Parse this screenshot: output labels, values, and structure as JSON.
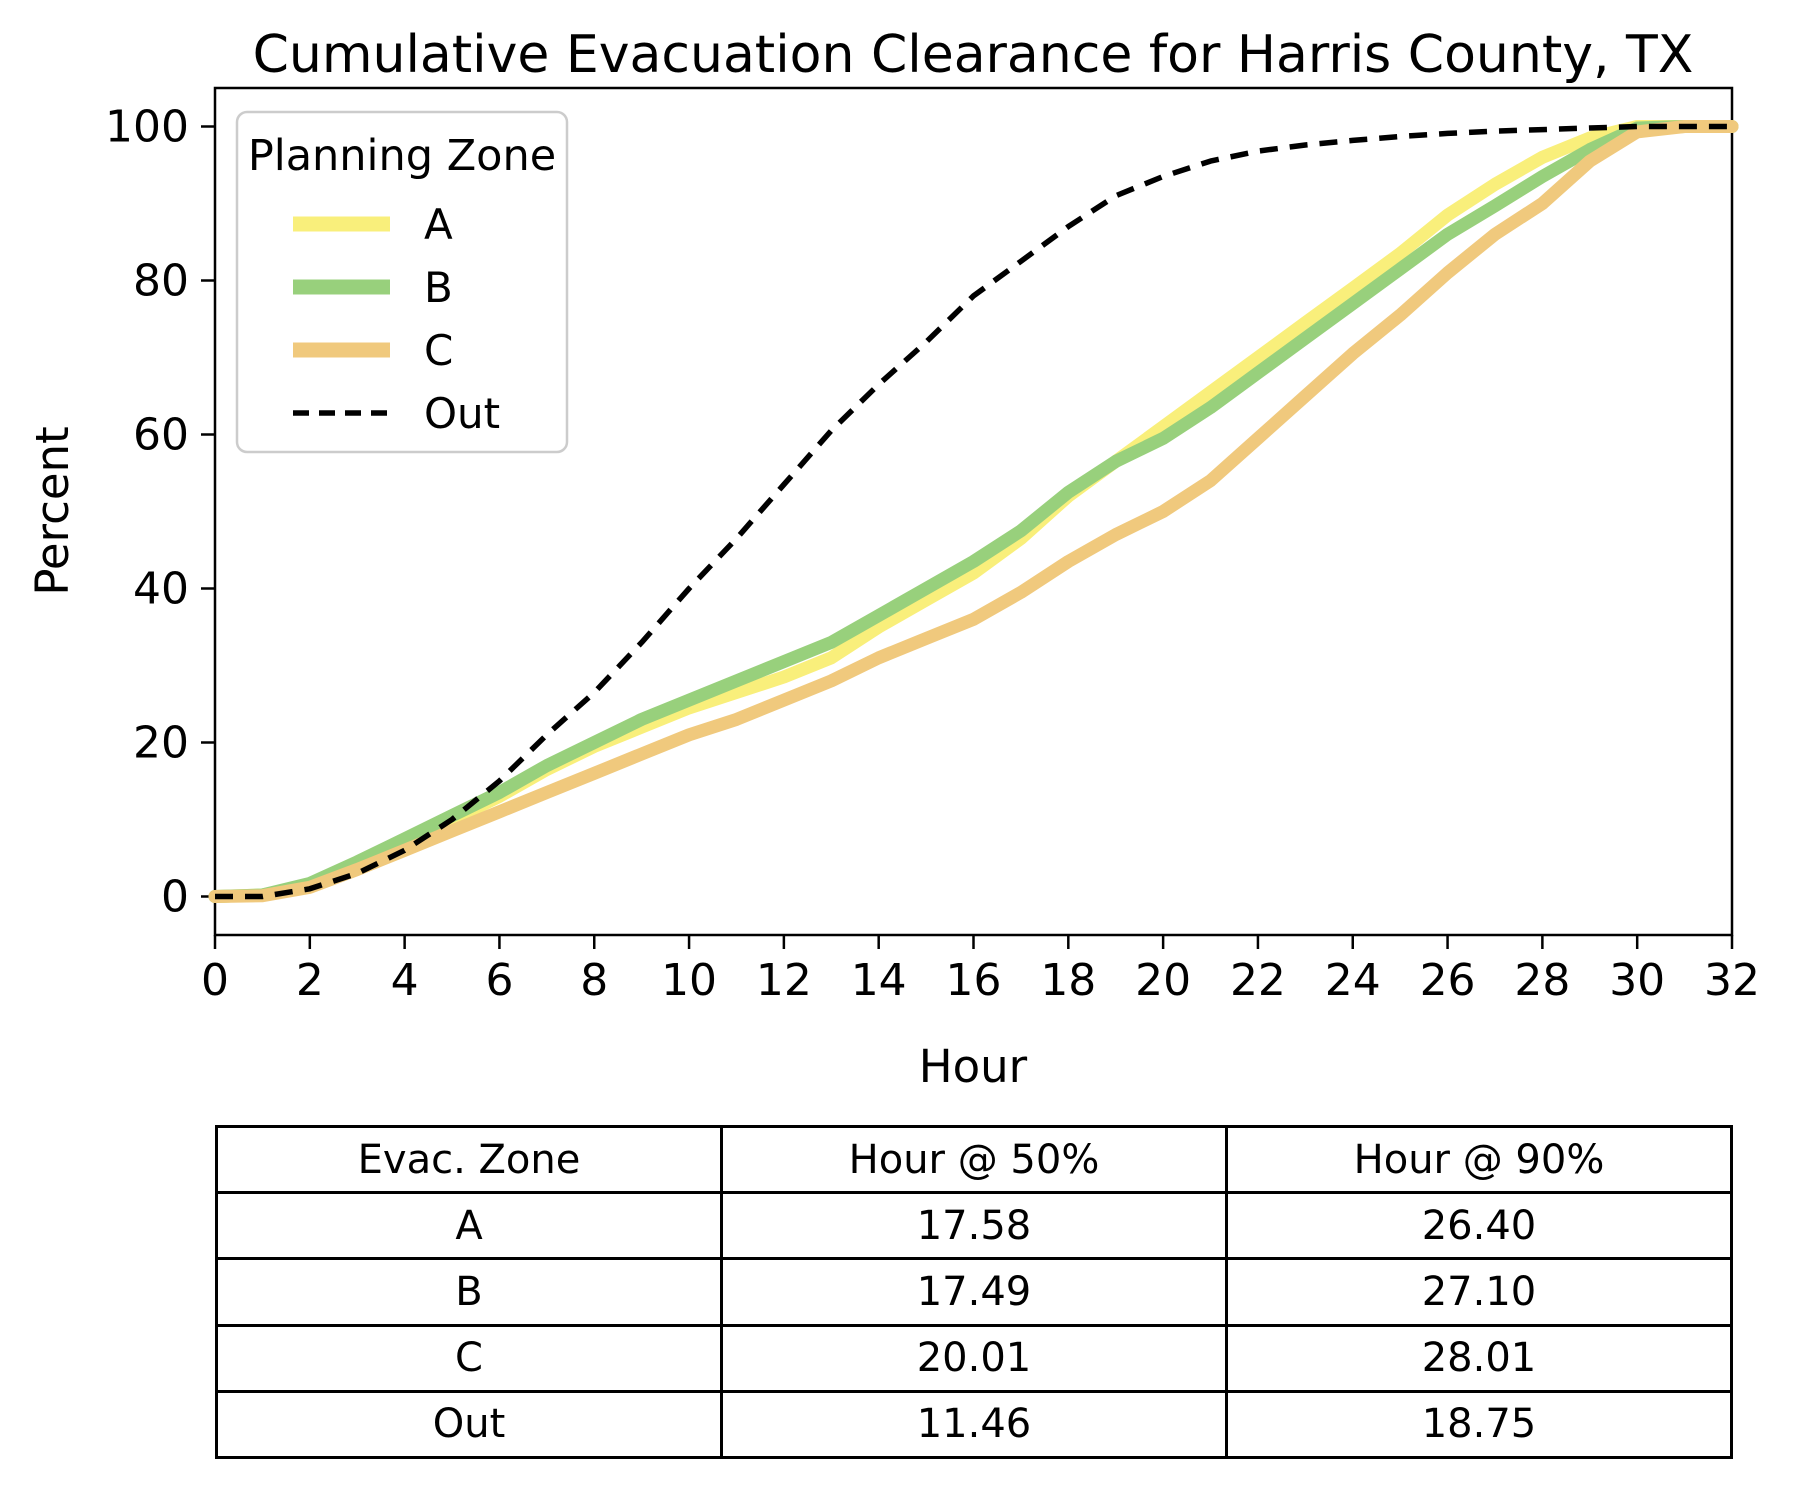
{
  "figure_title": "Cumulative Evacuation Clearance for Harris County, TX",
  "chart_data": {
    "type": "line",
    "title": "Cumulative Evacuation Clearance for Harris County, TX",
    "xlabel": "Hour",
    "ylabel": "Percent",
    "xlim": [
      0,
      32
    ],
    "ylim": [
      -5,
      105
    ],
    "xticks": [
      0,
      2,
      4,
      6,
      8,
      10,
      12,
      14,
      16,
      18,
      20,
      22,
      24,
      26,
      28,
      30,
      32
    ],
    "yticks": [
      0,
      20,
      40,
      60,
      80,
      100
    ],
    "grid": false,
    "legend_title": "Planning Zone",
    "legend_position": "upper-left",
    "x": [
      0,
      1,
      2,
      3,
      4,
      5,
      6,
      7,
      8,
      9,
      10,
      11,
      12,
      13,
      14,
      15,
      16,
      17,
      18,
      19,
      20,
      21,
      22,
      23,
      24,
      25,
      26,
      27,
      28,
      29,
      30,
      31,
      32
    ],
    "series": [
      {
        "name": "A",
        "color": "#F9EF7B",
        "dash": false,
        "width": 13,
        "values": [
          0,
          0.2,
          1.5,
          4,
          7,
          10,
          13,
          16.5,
          19.5,
          22,
          24.5,
          26.5,
          28.5,
          31,
          35,
          38.5,
          42,
          46.5,
          52,
          56.5,
          61,
          65.5,
          70,
          74.5,
          79,
          83.5,
          88.5,
          92.5,
          96,
          98.5,
          100,
          100,
          100
        ]
      },
      {
        "name": "B",
        "color": "#98D07C",
        "dash": false,
        "width": 13,
        "values": [
          0,
          0.2,
          1.7,
          4.5,
          7.5,
          10.5,
          13.5,
          17,
          20,
          23,
          25.5,
          28,
          30.5,
          33,
          36.5,
          40,
          43.5,
          47.5,
          52.5,
          56.5,
          59.5,
          63.5,
          68,
          72.5,
          77,
          81.5,
          86,
          89.7,
          93.5,
          97,
          99.8,
          100,
          100
        ]
      },
      {
        "name": "C",
        "color": "#F0C97D",
        "dash": false,
        "width": 13,
        "values": [
          0,
          0.1,
          1.2,
          3.5,
          6,
          8.5,
          11,
          13.5,
          16,
          18.5,
          21,
          23,
          25.5,
          28,
          31,
          33.5,
          36,
          39.5,
          43.5,
          47,
          50,
          54,
          59.5,
          65,
          70.5,
          75.5,
          81,
          86,
          90,
          95.5,
          99.3,
          100,
          100
        ]
      },
      {
        "name": "Out",
        "color": "#000000",
        "dash": true,
        "width": 5.5,
        "values": [
          0,
          0,
          1,
          3,
          6,
          10,
          15,
          21,
          26.5,
          33,
          40,
          46.5,
          53.5,
          60.5,
          66.5,
          72,
          78,
          82.5,
          87,
          91,
          93.5,
          95.5,
          96.8,
          97.6,
          98.2,
          98.7,
          99.1,
          99.4,
          99.6,
          99.8,
          100,
          100,
          100
        ]
      }
    ]
  },
  "table": {
    "headers": [
      "Evac. Zone",
      "Hour @ 50%",
      "Hour @ 90%"
    ],
    "rows": [
      [
        "A",
        "17.58",
        "26.40"
      ],
      [
        "B",
        "17.49",
        "27.10"
      ],
      [
        "C",
        "20.01",
        "28.01"
      ],
      [
        "Out",
        "11.46",
        "18.75"
      ]
    ]
  },
  "colors": {
    "legend_border": "#CCCCCC",
    "axis": "#000000"
  }
}
